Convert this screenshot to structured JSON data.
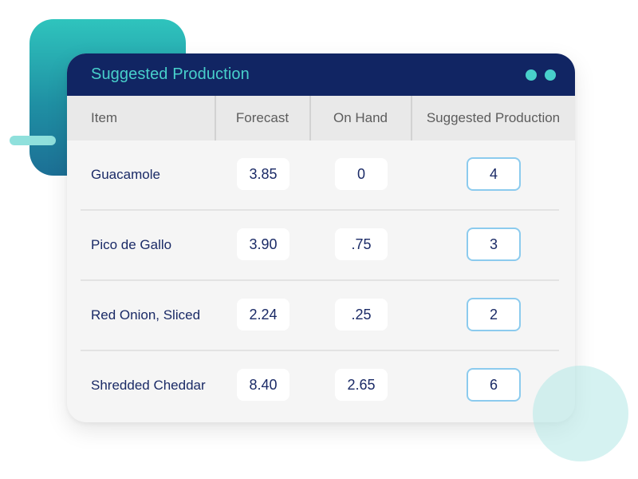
{
  "window": {
    "title": "Suggested Production"
  },
  "table": {
    "headers": {
      "item": "Item",
      "forecast": "Forecast",
      "on_hand": "On Hand",
      "suggested": "Suggested Production"
    },
    "rows": [
      {
        "item": "Guacamole",
        "forecast": "3.85",
        "on_hand": "0",
        "suggested": "4"
      },
      {
        "item": "Pico de Gallo",
        "forecast": "3.90",
        "on_hand": ".75",
        "suggested": "3"
      },
      {
        "item": "Red Onion, Sliced",
        "forecast": "2.24",
        "on_hand": ".25",
        "suggested": "2"
      },
      {
        "item": "Shredded Cheddar",
        "forecast": "8.40",
        "on_hand": "2.65",
        "suggested": "6"
      }
    ]
  },
  "colors": {
    "titlebar": "#112563",
    "accent": "#48d0cb",
    "input_border": "#8ccbee",
    "text_dark": "#1a2a66"
  }
}
